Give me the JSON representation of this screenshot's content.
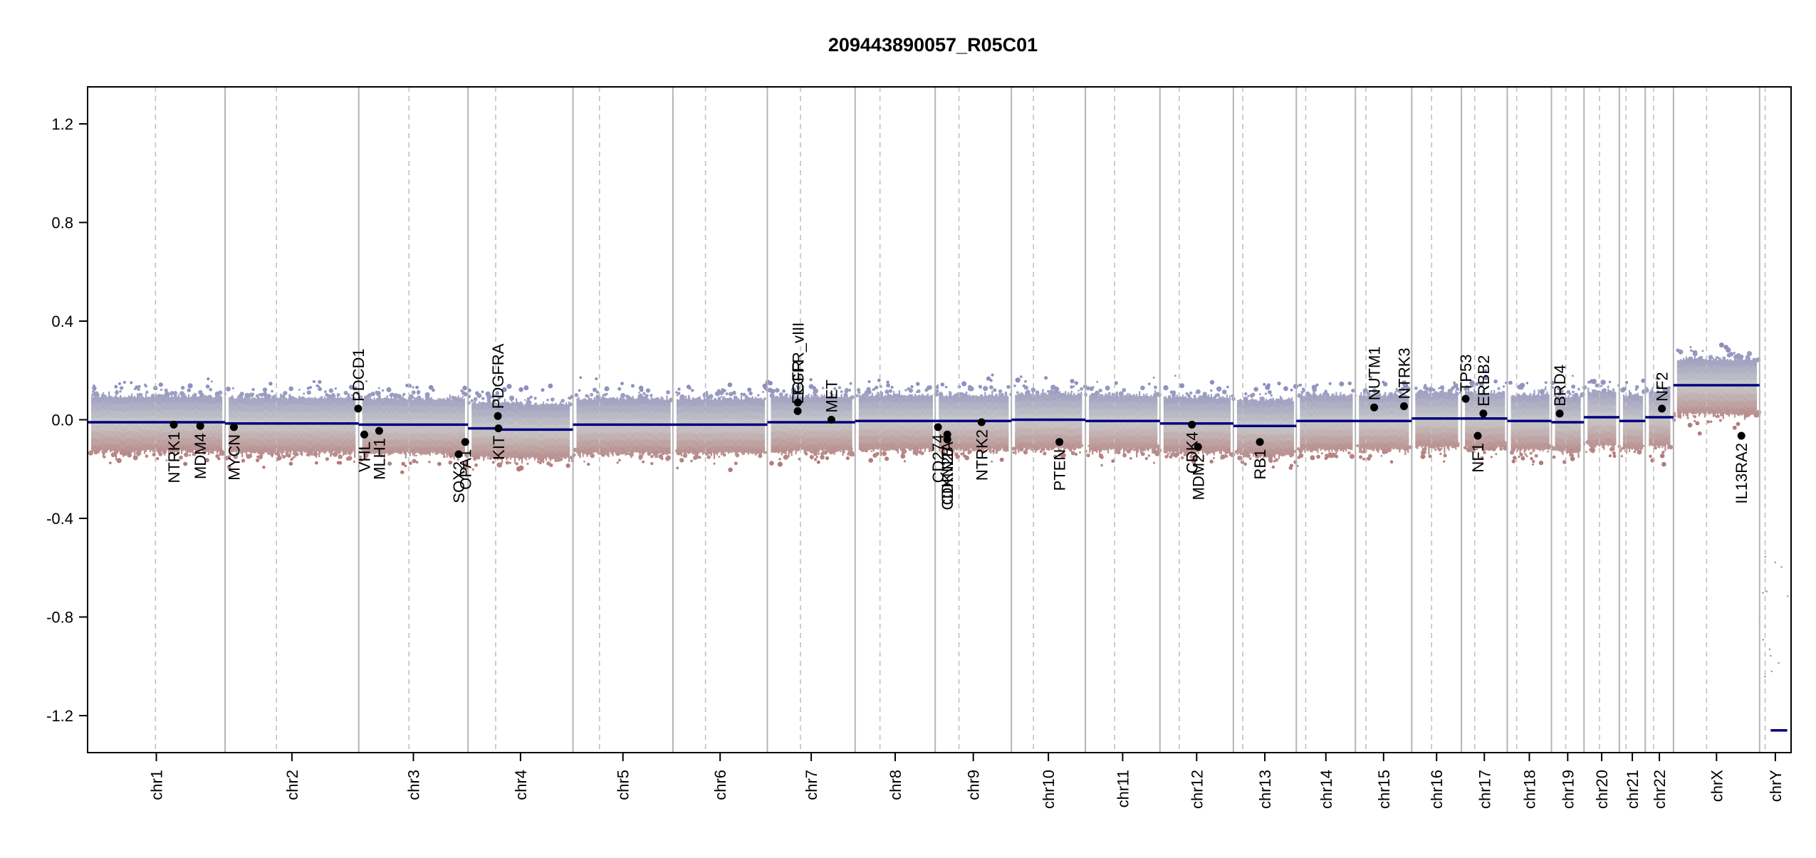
{
  "title": "209443890057_R05C01",
  "colors": {
    "gain": "#8c8cbe",
    "loss": "#b47a7a",
    "neutral": "#c8c8c8",
    "segment": "#000080",
    "gene_dot": "#000000",
    "solid_boundary": "#b4b4b4",
    "dashed_centromere": "#c0c0c0"
  },
  "chart_data": {
    "type": "scatter",
    "title": "209443890057_R05C01",
    "xlabel": "",
    "ylabel": "",
    "ylim": [
      -1.35,
      1.35
    ],
    "yticks": [
      -1.2,
      -0.8,
      -0.4,
      0.0,
      0.4,
      0.8,
      1.2
    ],
    "ytick_labels": [
      "-1.2",
      "-0.8",
      "-0.4",
      "0.0",
      "0.4",
      "0.8",
      "1.2"
    ],
    "grid": false,
    "legend": "none",
    "x_axis_unit": "Mb",
    "chromosomes": [
      {
        "name": "chr1",
        "length": 249,
        "centromere": 123
      },
      {
        "name": "chr2",
        "length": 242,
        "centromere": 93
      },
      {
        "name": "chr3",
        "length": 198,
        "centromere": 91
      },
      {
        "name": "chr4",
        "length": 190,
        "centromere": 50
      },
      {
        "name": "chr5",
        "length": 181,
        "centromere": 48
      },
      {
        "name": "chr6",
        "length": 171,
        "centromere": 59
      },
      {
        "name": "chr7",
        "length": 159,
        "centromere": 60
      },
      {
        "name": "chr8",
        "length": 145,
        "centromere": 45
      },
      {
        "name": "chr9",
        "length": 138,
        "centromere": 43
      },
      {
        "name": "chr10",
        "length": 134,
        "centromere": 40
      },
      {
        "name": "chr11",
        "length": 135,
        "centromere": 53
      },
      {
        "name": "chr12",
        "length": 133,
        "centromere": 35
      },
      {
        "name": "chr13",
        "length": 114,
        "centromere": 17
      },
      {
        "name": "chr14",
        "length": 107,
        "centromere": 17
      },
      {
        "name": "chr15",
        "length": 102,
        "centromere": 19
      },
      {
        "name": "chr16",
        "length": 90,
        "centromere": 36
      },
      {
        "name": "chr17",
        "length": 83,
        "centromere": 24
      },
      {
        "name": "chr18",
        "length": 80,
        "centromere": 17
      },
      {
        "name": "chr19",
        "length": 59,
        "centromere": 26
      },
      {
        "name": "chr20",
        "length": 64,
        "centromere": 28
      },
      {
        "name": "chr21",
        "length": 47,
        "centromere": 12
      },
      {
        "name": "chr22",
        "length": 51,
        "centromere": 15
      },
      {
        "name": "chrX",
        "length": 156,
        "centromere": 60
      },
      {
        "name": "chrY",
        "length": 57,
        "centromere": 10
      }
    ],
    "segments": [
      {
        "chrom": "chr1",
        "start": 0,
        "end": 249,
        "value": -0.01
      },
      {
        "chrom": "chr2",
        "start": 0,
        "end": 242,
        "value": -0.015
      },
      {
        "chrom": "chr3",
        "start": 0,
        "end": 198,
        "value": -0.02
      },
      {
        "chrom": "chr4",
        "start": 0,
        "end": 50,
        "value": -0.035
      },
      {
        "chrom": "chr4",
        "start": 50,
        "end": 190,
        "value": -0.04
      },
      {
        "chrom": "chr5",
        "start": 0,
        "end": 181,
        "value": -0.02
      },
      {
        "chrom": "chr6",
        "start": 0,
        "end": 171,
        "value": -0.02
      },
      {
        "chrom": "chr7",
        "start": 0,
        "end": 159,
        "value": -0.01
      },
      {
        "chrom": "chr8",
        "start": 0,
        "end": 145,
        "value": -0.005
      },
      {
        "chrom": "chr9",
        "start": 0,
        "end": 138,
        "value": -0.005
      },
      {
        "chrom": "chr10",
        "start": 0,
        "end": 134,
        "value": 0.0
      },
      {
        "chrom": "chr11",
        "start": 0,
        "end": 135,
        "value": -0.005
      },
      {
        "chrom": "chr12",
        "start": 0,
        "end": 133,
        "value": -0.015
      },
      {
        "chrom": "chr13",
        "start": 0,
        "end": 114,
        "value": -0.025
      },
      {
        "chrom": "chr14",
        "start": 0,
        "end": 107,
        "value": -0.005
      },
      {
        "chrom": "chr15",
        "start": 0,
        "end": 102,
        "value": -0.005
      },
      {
        "chrom": "chr16",
        "start": 0,
        "end": 90,
        "value": 0.005
      },
      {
        "chrom": "chr17",
        "start": 0,
        "end": 83,
        "value": 0.005
      },
      {
        "chrom": "chr18",
        "start": 0,
        "end": 80,
        "value": -0.005
      },
      {
        "chrom": "chr19",
        "start": 0,
        "end": 59,
        "value": -0.01
      },
      {
        "chrom": "chr20",
        "start": 0,
        "end": 64,
        "value": 0.01
      },
      {
        "chrom": "chr21",
        "start": 0,
        "end": 47,
        "value": -0.005
      },
      {
        "chrom": "chr22",
        "start": 0,
        "end": 51,
        "value": 0.01
      },
      {
        "chrom": "chrX",
        "start": 0,
        "end": 156,
        "value": 0.14
      },
      {
        "chrom": "chrY",
        "start": 20,
        "end": 50,
        "value": -1.26
      }
    ],
    "genes": [
      {
        "name": "NTRK1",
        "chrom": "chr1",
        "pos": 156,
        "value": -0.02
      },
      {
        "name": "MDM4",
        "chrom": "chr1",
        "pos": 204,
        "value": -0.025
      },
      {
        "name": "MYCN",
        "chrom": "chr2",
        "pos": 16,
        "value": -0.03
      },
      {
        "name": "PDCD1",
        "chrom": "chr2",
        "pos": 241,
        "value": 0.045
      },
      {
        "name": "VHL",
        "chrom": "chr3",
        "pos": 10,
        "value": -0.06
      },
      {
        "name": "MLH1",
        "chrom": "chr3",
        "pos": 37,
        "value": -0.045
      },
      {
        "name": "SOX2",
        "chrom": "chr3",
        "pos": 181,
        "value": -0.14
      },
      {
        "name": "OPA1",
        "chrom": "chr3",
        "pos": 193,
        "value": -0.09
      },
      {
        "name": "KIT",
        "chrom": "chr4",
        "pos": 55,
        "value": -0.035
      },
      {
        "name": "PDGFRA",
        "chrom": "chr4",
        "pos": 54,
        "value": 0.015
      },
      {
        "name": "EGFR",
        "chrom": "chr7",
        "pos": 55,
        "value": 0.035
      },
      {
        "name": "EGFR_vIII",
        "chrom": "chr7",
        "pos": 55.3,
        "value": 0.07
      },
      {
        "name": "MET",
        "chrom": "chr7",
        "pos": 116,
        "value": 0.0
      },
      {
        "name": "CD274",
        "chrom": "chr9",
        "pos": 5,
        "value": -0.03
      },
      {
        "name": "CDKN2A",
        "chrom": "chr9",
        "pos": 21.9,
        "value": -0.06
      },
      {
        "name": "CDKN2B",
        "chrom": "chr9",
        "pos": 22,
        "value": -0.08
      },
      {
        "name": "NTRK2",
        "chrom": "chr9",
        "pos": 84,
        "value": -0.01
      },
      {
        "name": "PTEN",
        "chrom": "chr10",
        "pos": 87,
        "value": -0.09
      },
      {
        "name": "CDK4",
        "chrom": "chr12",
        "pos": 58,
        "value": -0.02
      },
      {
        "name": "MDM2",
        "chrom": "chr12",
        "pos": 69,
        "value": -0.11
      },
      {
        "name": "RB1",
        "chrom": "chr13",
        "pos": 48,
        "value": -0.09
      },
      {
        "name": "NUTM1",
        "chrom": "chr15",
        "pos": 34,
        "value": 0.05
      },
      {
        "name": "NTRK3",
        "chrom": "chr15",
        "pos": 88,
        "value": 0.055
      },
      {
        "name": "TP53",
        "chrom": "chr17",
        "pos": 7.6,
        "value": 0.085
      },
      {
        "name": "ERBB2",
        "chrom": "chr17",
        "pos": 39.7,
        "value": 0.025
      },
      {
        "name": "NF1",
        "chrom": "chr17",
        "pos": 29.5,
        "value": -0.065
      },
      {
        "name": "BRD4",
        "chrom": "chr19",
        "pos": 15,
        "value": 0.025
      },
      {
        "name": "NF2",
        "chrom": "chr22",
        "pos": 30,
        "value": 0.045
      },
      {
        "name": "IL13RA2",
        "chrom": "chrX",
        "pos": 123,
        "value": -0.065
      }
    ]
  }
}
